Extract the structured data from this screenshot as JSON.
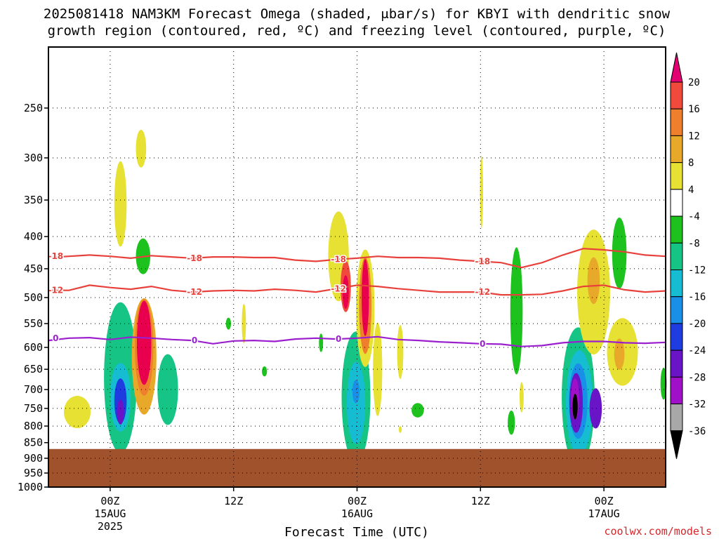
{
  "header": {
    "title_line1": "2025081418 NAM3KM Forecast Omega (shaded, μbar/s) for KBYI with dendritic snow",
    "title_line2": "growth region (contoured, red, ºC) and freezing level (contoured, purple, ºC)"
  },
  "footer": {
    "xlabel": "Forecast Time (UTC)",
    "credit": "coolwx.com/models"
  },
  "colors": {
    "ground": "#a0522d",
    "dgz": "#e8413c",
    "freezing": "#9b1fcf"
  },
  "chart_data": {
    "type": "heatmap",
    "title": "2025081418 NAM3KM Forecast Omega (shaded, μbar/s) for KBYI with dendritic snow growth region (contoured, red, ºC) and freezing level (contoured, purple, ºC)",
    "xlabel": "Forecast Time (UTC)",
    "ylabel": "",
    "x_unit": "hours since 2025-08-14 18Z",
    "xlim": [
      0,
      60
    ],
    "y_scale": "log pressure",
    "ylim": [
      1000,
      200
    ],
    "grid": true,
    "x_ticks": [
      {
        "x": 6,
        "label": "00Z",
        "sub1": "15AUG",
        "sub2": "2025"
      },
      {
        "x": 18,
        "label": "12Z",
        "sub1": "",
        "sub2": ""
      },
      {
        "x": 30,
        "label": "00Z",
        "sub1": "16AUG",
        "sub2": ""
      },
      {
        "x": 42,
        "label": "12Z",
        "sub1": "",
        "sub2": ""
      },
      {
        "x": 54,
        "label": "00Z",
        "sub1": "17AUG",
        "sub2": ""
      }
    ],
    "y_ticks": [
      250,
      300,
      350,
      400,
      450,
      500,
      550,
      600,
      650,
      700,
      750,
      800,
      850,
      900,
      950,
      1000
    ],
    "colorbar": {
      "levels": [
        20,
        16,
        12,
        8,
        4,
        -4,
        -8,
        -12,
        -16,
        -20,
        -24,
        -28,
        -32,
        -36
      ],
      "colors": [
        "#e8004e",
        "#f2493d",
        "#ee7f2c",
        "#e8a92a",
        "#e6e133",
        "#ffffff",
        "#1ec21e",
        "#16c486",
        "#16bcd2",
        "#1a8fe8",
        "#1f3ce0",
        "#6a14c8",
        "#a010c8",
        "#a8a8a8",
        "#000000"
      ],
      "top_arrow_color": "#e30072",
      "bottom_arrow_color": "#000000"
    },
    "ground_pressure": 870,
    "contours": [
      {
        "name": "dendritic snow growth -18",
        "label": "-18",
        "color": "#e8413c",
        "x": [
          0,
          2,
          4,
          6,
          8,
          10,
          12,
          14,
          16,
          18,
          20,
          22,
          24,
          26,
          28,
          30,
          32,
          34,
          36,
          38,
          40,
          42,
          44,
          46,
          48,
          50,
          52,
          54,
          56,
          58,
          60
        ],
        "p": [
          432,
          430,
          428,
          430,
          433,
          429,
          431,
          433,
          431,
          431,
          432,
          432,
          436,
          438,
          435,
          433,
          430,
          432,
          432,
          433,
          436,
          438,
          440,
          448,
          440,
          428,
          418,
          420,
          423,
          428,
          430
        ]
      },
      {
        "name": "dendritic snow growth -12",
        "label": "-12",
        "color": "#e8413c",
        "x": [
          0,
          2,
          4,
          6,
          8,
          10,
          12,
          14,
          16,
          18,
          20,
          22,
          24,
          26,
          28,
          30,
          32,
          34,
          36,
          38,
          40,
          42,
          44,
          46,
          48,
          50,
          52,
          54,
          56,
          58,
          60
        ],
        "p": [
          487,
          487,
          478,
          482,
          485,
          480,
          487,
          490,
          488,
          487,
          488,
          485,
          487,
          490,
          484,
          478,
          480,
          484,
          487,
          490,
          490,
          490,
          495,
          495,
          494,
          488,
          480,
          478,
          486,
          490,
          488
        ]
      },
      {
        "name": "freezing level 0",
        "label": "0",
        "color": "#9b1fcf",
        "x": [
          0,
          2,
          4,
          6,
          8,
          10,
          12,
          14,
          16,
          18,
          20,
          22,
          24,
          26,
          28,
          30,
          32,
          34,
          36,
          38,
          40,
          42,
          44,
          46,
          48,
          50,
          52,
          54,
          56,
          58,
          60
        ],
        "p": [
          585,
          580,
          579,
          583,
          578,
          580,
          583,
          585,
          592,
          586,
          585,
          587,
          582,
          580,
          582,
          580,
          577,
          583,
          585,
          588,
          590,
          592,
          593,
          598,
          596,
          590,
          587,
          587,
          590,
          591,
          589
        ]
      }
    ],
    "omega_features": [
      {
        "x": 2.8,
        "p": 760,
        "w": 1.3,
        "h": 45,
        "value": 6
      },
      {
        "x": 7.0,
        "p": 355,
        "w": 0.6,
        "h": 55,
        "value": 5
      },
      {
        "x": 9.0,
        "p": 290,
        "w": 0.5,
        "h": 20,
        "value": 5
      },
      {
        "x": 9.2,
        "p": 430,
        "w": 0.7,
        "h": 28,
        "value": -8
      },
      {
        "x": 7.0,
        "p": 670,
        "w": 1.6,
        "h": 180,
        "value": -10
      },
      {
        "x": 7.0,
        "p": 720,
        "w": 1.0,
        "h": 90,
        "value": -16
      },
      {
        "x": 7.0,
        "p": 730,
        "w": 0.6,
        "h": 60,
        "value": -24
      },
      {
        "x": 7.0,
        "p": 760,
        "w": 0.35,
        "h": 35,
        "value": -28
      },
      {
        "x": 9.3,
        "p": 620,
        "w": 1.2,
        "h": 130,
        "value": 8
      },
      {
        "x": 9.3,
        "p": 600,
        "w": 0.9,
        "h": 105,
        "value": 14
      },
      {
        "x": 9.3,
        "p": 590,
        "w": 0.7,
        "h": 90,
        "value": 22
      },
      {
        "x": 11.6,
        "p": 700,
        "w": 1.0,
        "h": 90,
        "value": -9
      },
      {
        "x": 17.5,
        "p": 550,
        "w": 0.25,
        "h": 12,
        "value": -6
      },
      {
        "x": 19.0,
        "p": 550,
        "w": 0.2,
        "h": 40,
        "value": 5
      },
      {
        "x": 21.0,
        "p": 655,
        "w": 0.25,
        "h": 12,
        "value": -6
      },
      {
        "x": 26.5,
        "p": 590,
        "w": 0.2,
        "h": 20,
        "value": -6
      },
      {
        "x": 28.2,
        "p": 430,
        "w": 1.0,
        "h": 70,
        "value": 5
      },
      {
        "x": 28.9,
        "p": 480,
        "w": 0.5,
        "h": 45,
        "value": 16
      },
      {
        "x": 28.9,
        "p": 490,
        "w": 0.3,
        "h": 30,
        "value": 22
      },
      {
        "x": 29.9,
        "p": 720,
        "w": 1.4,
        "h": 170,
        "value": -9
      },
      {
        "x": 29.9,
        "p": 735,
        "w": 0.9,
        "h": 110,
        "value": -14
      },
      {
        "x": 29.9,
        "p": 705,
        "w": 0.35,
        "h": 30,
        "value": -20
      },
      {
        "x": 30.8,
        "p": 520,
        "w": 0.9,
        "h": 110,
        "value": 6
      },
      {
        "x": 30.8,
        "p": 515,
        "w": 0.6,
        "h": 90,
        "value": 12
      },
      {
        "x": 30.8,
        "p": 500,
        "w": 0.35,
        "h": 70,
        "value": 21
      },
      {
        "x": 32.0,
        "p": 650,
        "w": 0.45,
        "h": 110,
        "value": 6
      },
      {
        "x": 34.2,
        "p": 610,
        "w": 0.3,
        "h": 60,
        "value": 5
      },
      {
        "x": 34.2,
        "p": 810,
        "w": 0.15,
        "h": 10,
        "value": 4
      },
      {
        "x": 35.9,
        "p": 755,
        "w": 0.6,
        "h": 20,
        "value": -8
      },
      {
        "x": 42.1,
        "p": 340,
        "w": 0.15,
        "h": 45,
        "value": 5
      },
      {
        "x": 45.5,
        "p": 525,
        "w": 0.6,
        "h": 120,
        "value": -8
      },
      {
        "x": 45.0,
        "p": 790,
        "w": 0.35,
        "h": 35,
        "value": -8
      },
      {
        "x": 46.0,
        "p": 720,
        "w": 0.2,
        "h": 40,
        "value": 5
      },
      {
        "x": 51.5,
        "p": 720,
        "w": 1.6,
        "h": 180,
        "value": -9
      },
      {
        "x": 51.6,
        "p": 735,
        "w": 1.3,
        "h": 140,
        "value": -14
      },
      {
        "x": 51.5,
        "p": 730,
        "w": 0.9,
        "h": 100,
        "value": -20
      },
      {
        "x": 51.3,
        "p": 735,
        "w": 0.65,
        "h": 80,
        "value": -27
      },
      {
        "x": 51.2,
        "p": 725,
        "w": 0.4,
        "h": 55,
        "value": -32
      },
      {
        "x": 51.2,
        "p": 745,
        "w": 0.25,
        "h": 35,
        "value": -38
      },
      {
        "x": 53.2,
        "p": 750,
        "w": 0.6,
        "h": 55,
        "value": -26
      },
      {
        "x": 53.0,
        "p": 490,
        "w": 1.6,
        "h": 110,
        "value": 5
      },
      {
        "x": 53.0,
        "p": 470,
        "w": 0.6,
        "h": 40,
        "value": 8
      },
      {
        "x": 55.8,
        "p": 610,
        "w": 1.5,
        "h": 75,
        "value": 5
      },
      {
        "x": 55.5,
        "p": 615,
        "w": 0.5,
        "h": 35,
        "value": 9
      },
      {
        "x": 55.5,
        "p": 425,
        "w": 0.7,
        "h": 55,
        "value": -8
      },
      {
        "x": 59.8,
        "p": 685,
        "w": 0.3,
        "h": 40,
        "value": -8
      }
    ]
  }
}
